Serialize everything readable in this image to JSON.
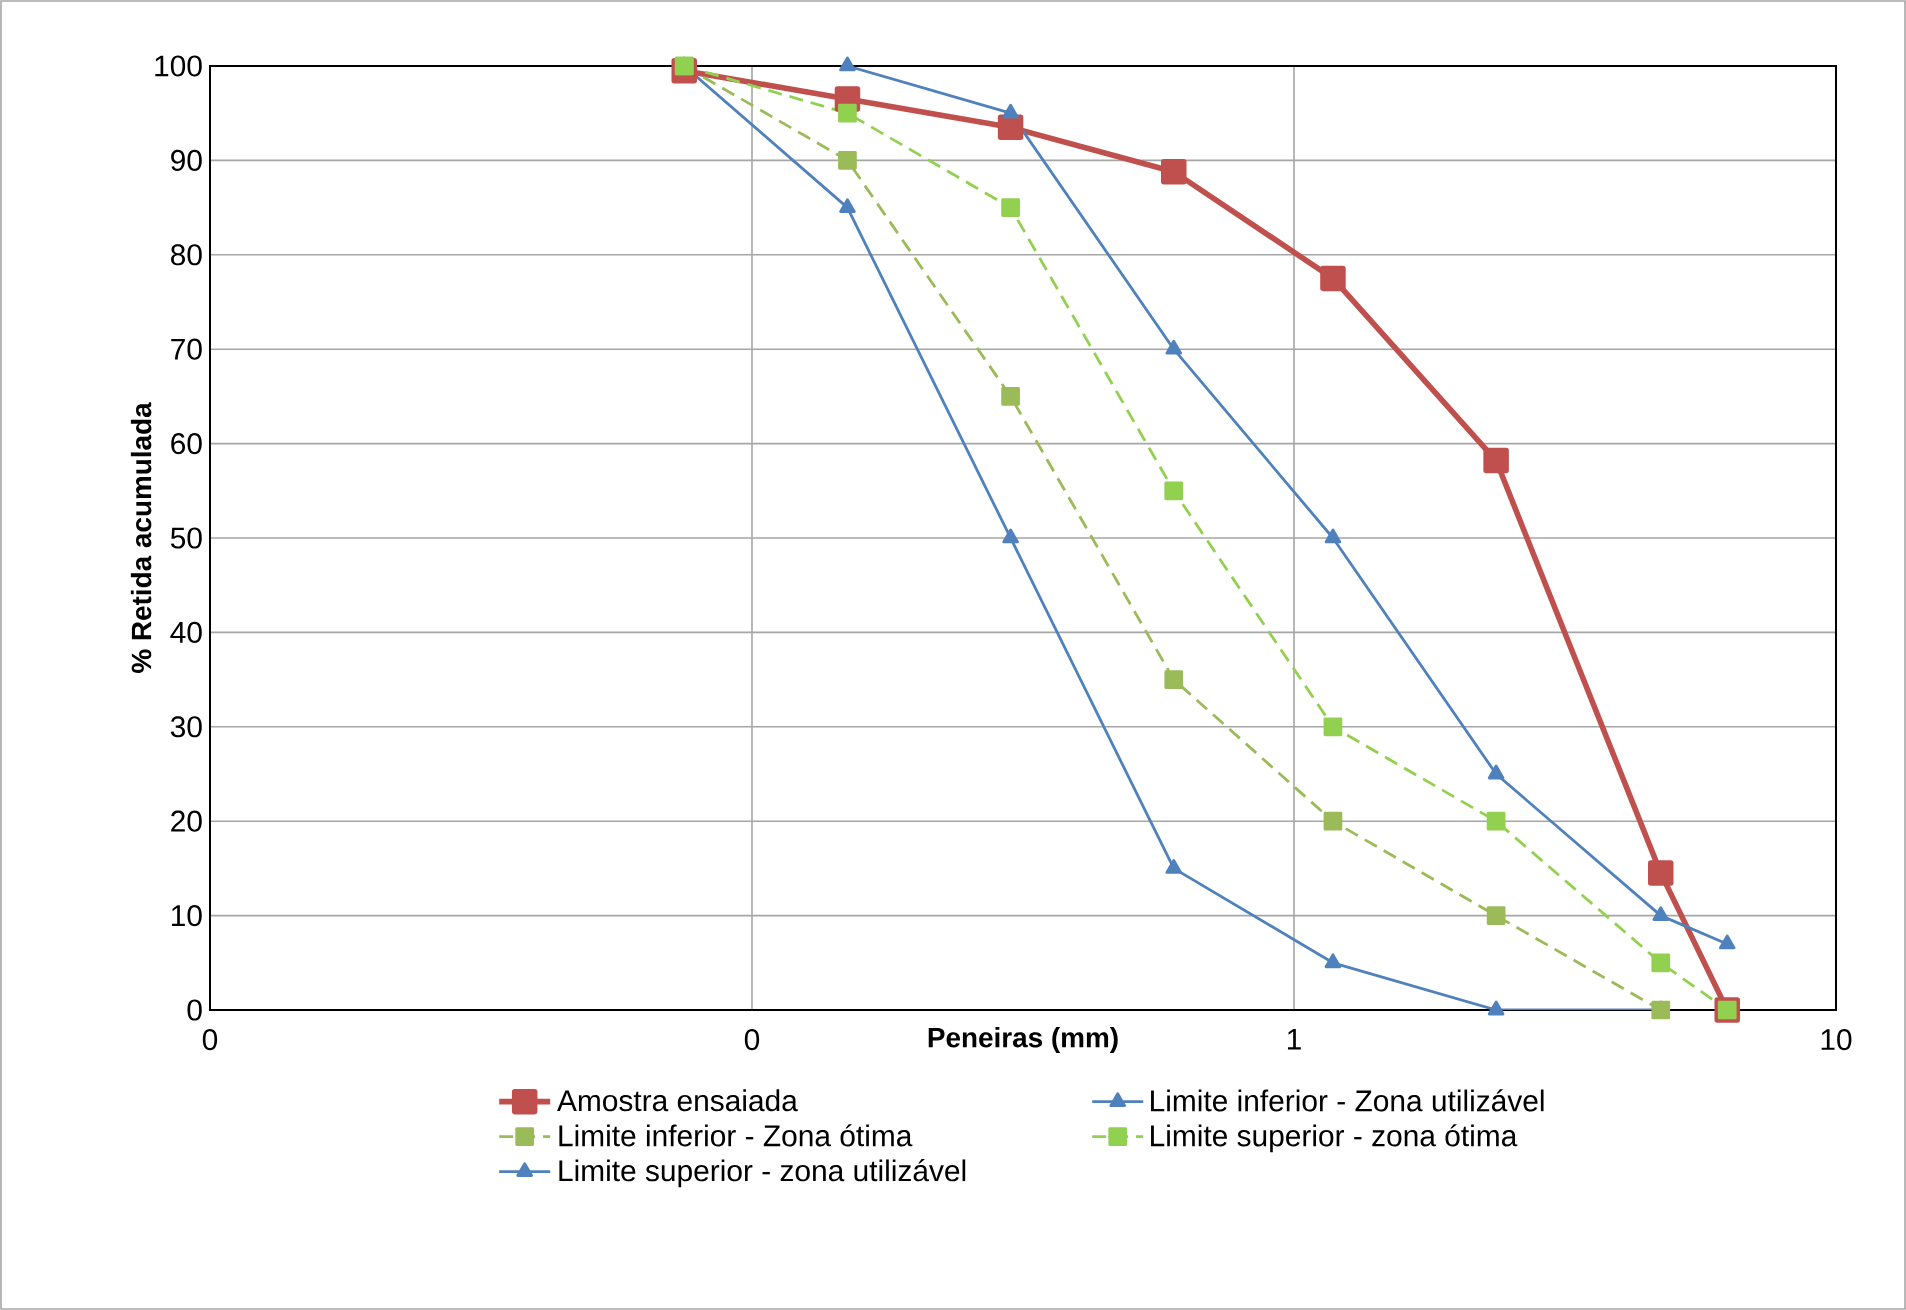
{
  "chart_data": {
    "type": "line",
    "xlabel": "Peneiras (mm)",
    "ylabel": "% Retida acumulada",
    "log": "x",
    "xlim": [
      0.01,
      10
    ],
    "xticks": [
      {
        "value": 0.01,
        "label": "0"
      },
      {
        "value": 0.1,
        "label": "0"
      },
      {
        "value": 1,
        "label": "1"
      },
      {
        "value": 10,
        "label": "10"
      }
    ],
    "ylim": [
      0,
      100
    ],
    "yticks": [
      0,
      10,
      20,
      30,
      40,
      50,
      60,
      70,
      80,
      90,
      100
    ],
    "grid": true,
    "legend": "bottom",
    "series": [
      {
        "name": "Amostra ensaiada",
        "color": "#c0504d",
        "marker": "square",
        "line_style": "solid",
        "x": [
          0.075,
          0.15,
          0.3,
          0.6,
          1.18,
          2.36,
          4.75,
          6.3
        ],
        "values": [
          99.5,
          96.5,
          93.5,
          88.8,
          77.5,
          58.2,
          14.5,
          0
        ]
      },
      {
        "name": "Limite inferior - Zona utilizável",
        "color": "#4f81bd",
        "marker": "triangle",
        "line_style": "solid",
        "x": [
          0.075,
          0.15,
          0.3,
          0.6,
          1.18,
          2.36,
          4.75
        ],
        "values": [
          100,
          85,
          50,
          15,
          5,
          0,
          0
        ]
      },
      {
        "name": "Limite inferior - Zona ótima",
        "color": "#9bbb59",
        "marker": "square",
        "line_style": "dashed",
        "x": [
          0.075,
          0.15,
          0.3,
          0.6,
          1.18,
          2.36,
          4.75
        ],
        "values": [
          100,
          90,
          65,
          35,
          20,
          10,
          0
        ]
      },
      {
        "name": "Limite superior - zona ótima",
        "color": "#92d050",
        "marker": "square",
        "line_style": "dashed",
        "x": [
          0.075,
          0.15,
          0.3,
          0.6,
          1.18,
          2.36,
          4.75,
          6.3
        ],
        "values": [
          100,
          95,
          85,
          55,
          30,
          20,
          5,
          0
        ]
      },
      {
        "name": "Limite superior - zona utilizável",
        "color": "#4f81bd",
        "marker": "triangle",
        "line_style": "solid",
        "x": [
          0.15,
          0.3,
          0.6,
          1.18,
          2.36,
          4.75,
          6.3
        ],
        "values": [
          100,
          95,
          70,
          50,
          25,
          10,
          7
        ]
      }
    ]
  }
}
